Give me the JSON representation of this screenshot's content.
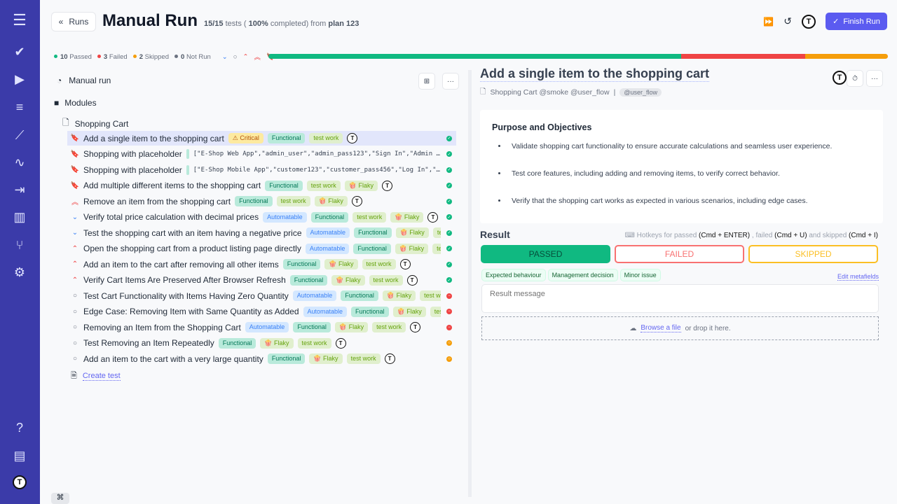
{
  "header": {
    "back_label": "Runs",
    "title": "Manual Run",
    "progress_count": "15/15",
    "tests_word": "tests (",
    "percent": "100%",
    "completed_from": "completed) from",
    "plan": "plan 123",
    "finish_label": "Finish Run"
  },
  "stats": {
    "passed": {
      "count": "10",
      "label": "Passed",
      "color": "#10b981"
    },
    "failed": {
      "count": "3",
      "label": "Failed",
      "color": "#ef4444"
    },
    "skipped": {
      "count": "2",
      "label": "Skipped",
      "color": "#f59e0b"
    },
    "not_run": {
      "count": "0",
      "label": "Not Run",
      "color": "#6b7280"
    }
  },
  "progress": {
    "passed": 10,
    "failed": 3,
    "skipped": 2,
    "not_run": 0
  },
  "tree": {
    "root": "Manual run",
    "folder": "Modules",
    "suite": "Shopping Cart",
    "create": "Create test",
    "tests": [
      {
        "title": "Add a single item to the shopping cart",
        "prio": "critical",
        "tags": [
          "⚠ Critical",
          "Functional",
          "test work"
        ],
        "avatar": true,
        "status": "passed",
        "selected": true
      },
      {
        "title": "Shopping with placeholder",
        "prio": "critical",
        "example": "[\"E-Shop Web App\",\"admin_user\",\"admin_pass123\",\"Sign In\",\"Admin Dash…",
        "status": "passed"
      },
      {
        "title": "Shopping with placeholder",
        "prio": "critical",
        "example": "[\"E-Shop Mobile App\",\"customer123\",\"customer_pass456\",\"Log In\",\"Welc…",
        "status": "passed"
      },
      {
        "title": "Add multiple different items to the shopping cart",
        "prio": "critical",
        "tags": [
          "Functional",
          "test work",
          "🍿 Flaky"
        ],
        "avatar": true,
        "status": "passed"
      },
      {
        "title": "Remove an item from the shopping cart",
        "prio": "high",
        "tags": [
          "Functional",
          "test work",
          "🍿 Flaky"
        ],
        "avatar": true,
        "status": "passed"
      },
      {
        "title": "Verify total price calculation with decimal prices",
        "prio": "low",
        "tags": [
          "Automatable",
          "Functional",
          "test work",
          "🍿 Flaky"
        ],
        "avatar": true,
        "status": "passed"
      },
      {
        "title": "Test the shopping cart with an item having a negative price",
        "prio": "low",
        "tags": [
          "Automatable",
          "Functional",
          "🍿 Flaky",
          "test work"
        ],
        "status": "passed"
      },
      {
        "title": "Open the shopping cart from a product listing page directly",
        "prio": "normal",
        "tags": [
          "Automatable",
          "Functional",
          "🍿 Flaky",
          "test work"
        ],
        "status": "passed"
      },
      {
        "title": "Add an item to the cart after removing all other items",
        "prio": "normal",
        "tags": [
          "Functional",
          "🍿 Flaky",
          "test work"
        ],
        "avatar": true,
        "status": "passed"
      },
      {
        "title": "Verify Cart Items Are Preserved After Browser Refresh",
        "prio": "normal",
        "tags": [
          "Functional",
          "🍿 Flaky",
          "test work"
        ],
        "avatar": true,
        "status": "passed"
      },
      {
        "title": "Test Cart Functionality with Items Having Zero Quantity",
        "prio": "none",
        "tags": [
          "Automatable",
          "Functional",
          "🍿 Flaky",
          "test work"
        ],
        "status": "failed"
      },
      {
        "title": "Edge Case: Removing Item with Same Quantity as Added",
        "prio": "none",
        "tags": [
          "Automatable",
          "Functional",
          "🍿 Flaky",
          "test work"
        ],
        "status": "failed"
      },
      {
        "title": "Removing an Item from the Shopping Cart",
        "prio": "none",
        "tags": [
          "Automatable",
          "Functional",
          "🍿 Flaky",
          "test work"
        ],
        "avatar": true,
        "status": "failed"
      },
      {
        "title": "Test Removing an Item Repeatedly",
        "prio": "none",
        "tags": [
          "Functional",
          "🍿 Flaky",
          "test work"
        ],
        "avatar": true,
        "status": "skipped"
      },
      {
        "title": "Add an item to the cart with a very large quantity",
        "prio": "none",
        "tags": [
          "Functional",
          "🍿 Flaky",
          "test work"
        ],
        "avatar": true,
        "status": "skipped"
      }
    ]
  },
  "detail": {
    "title": "Add a single item to the shopping cart",
    "meta": "Shopping Cart @smoke @user_flow",
    "chip": "@user_flow",
    "heading": "Purpose and Objectives",
    "bullets": [
      "Validate shopping cart functionality to ensure accurate calculations and seamless user experience.",
      "Test core features, including adding and removing items, to verify correct behavior.",
      "Verify that the shopping cart works as expected in various scenarios, including edge cases."
    ]
  },
  "result": {
    "title": "Result",
    "hk1": "Hotkeys for passed",
    "k1": "(Cmd + ENTER)",
    "hk2": ", failed",
    "k2": "(Cmd + U)",
    "hk3": "and skipped",
    "k3": "(Cmd + I)",
    "passed": "PASSED",
    "failed": "FAILED",
    "skipped": "SKIPPED",
    "metatags": [
      "Expected behaviour",
      "Management decision",
      "Minor issue"
    ],
    "edit_meta": "Edit metafields",
    "placeholder": "Result message",
    "browse": "Browse a file",
    "drop": "or drop it here."
  },
  "avatar_letter": "T"
}
